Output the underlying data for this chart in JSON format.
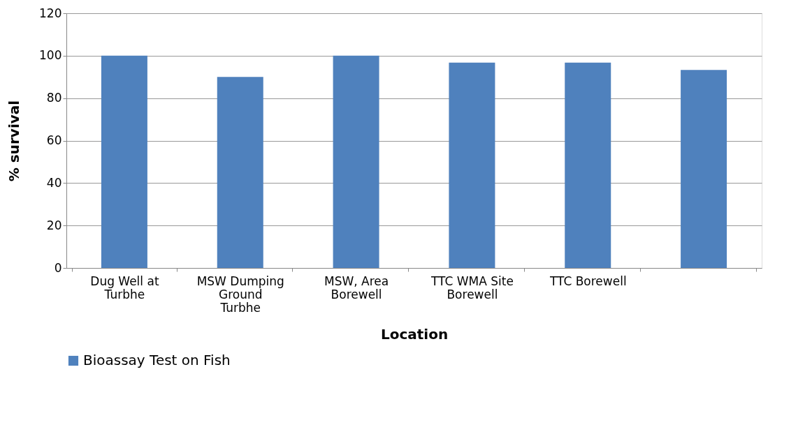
{
  "chart_data": {
    "type": "bar",
    "xlabel": "Location",
    "ylabel": "% survival",
    "categories": [
      "Dug Well at Turbhe",
      "MSW Dumping Ground Turbhe",
      "MSW, Area Borewell",
      "TTC WMA Site Borewell",
      "TTC Borewell",
      null
    ],
    "series": [
      {
        "name": "Bioassay Test on Fish",
        "color": "#4f81bd",
        "values": [
          100,
          90,
          100,
          96.7,
          96.7,
          93.3
        ]
      }
    ],
    "ylim": [
      0,
      120
    ],
    "yticks": [
      0,
      20,
      40,
      60,
      80,
      100,
      120
    ],
    "grid": "y",
    "legend": "bottom"
  }
}
